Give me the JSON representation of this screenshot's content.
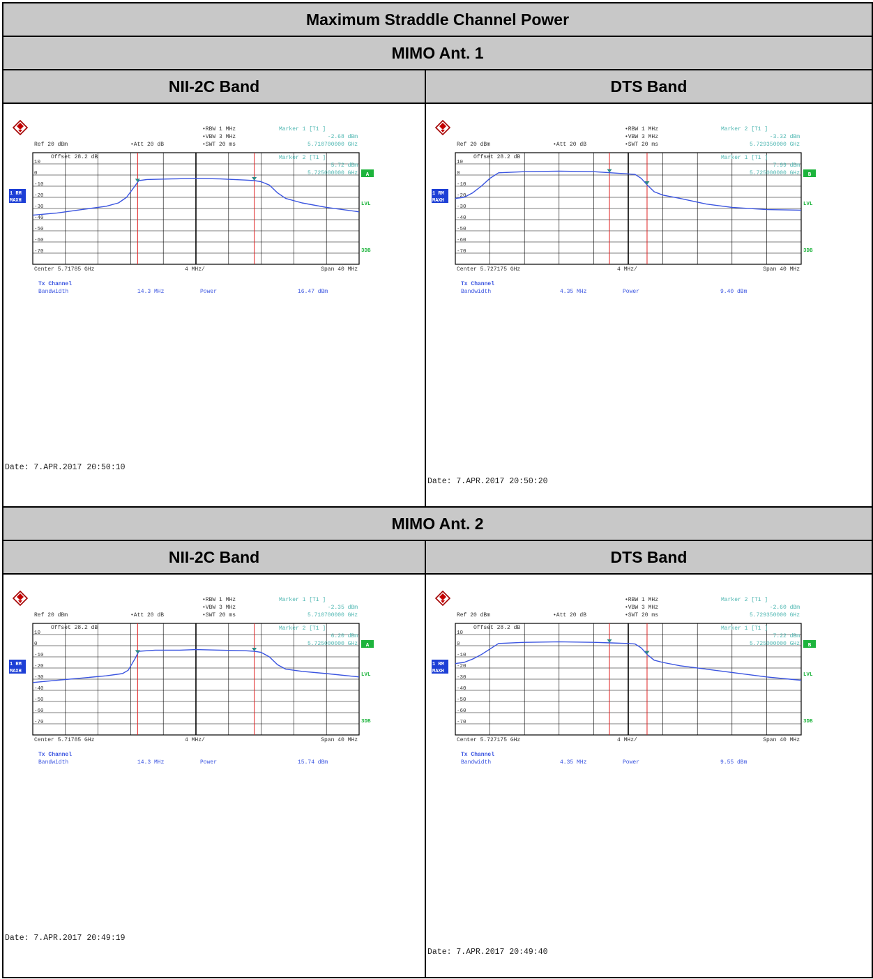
{
  "title": "Maximum Straddle Channel Power",
  "sections": [
    {
      "label": "MIMO Ant. 1",
      "band_left": "NII-2C Band",
      "band_right": "DTS Band"
    },
    {
      "label": "MIMO Ant. 2",
      "band_left": "NII-2C Band",
      "band_right": "DTS Band"
    }
  ],
  "chart_data": [
    {
      "type": "line",
      "label": "MIMO Ant. 1 - NII-2C Band",
      "settings": {
        "ref": "Ref  20 dBm",
        "att": "Att  20 dB",
        "offset": "Offset  28.2 dB",
        "rbw": "RBW 1 MHz",
        "vbw": "VBW 3 MHz",
        "swt": "SWT 20 ms",
        "trace_label": "1 RM",
        "trace_mode": "MAXH"
      },
      "markers": [
        {
          "label": "Marker 1 [T1 ]",
          "level": "-2.68 dBm",
          "freq": "5.710700000 GHz"
        },
        {
          "label": "Marker 2 [T1 ]",
          "level": "5.72 dBm",
          "freq": "5.725000000 GHz"
        }
      ],
      "side_labels": [
        "A",
        "LVL",
        "3DB"
      ],
      "center_label": "Center 5.71785 GHz",
      "div_label": "4 MHz/",
      "span_label": "Span 40 MHz",
      "center_ghz": 5.71785,
      "span_mhz": 40,
      "ylim": [
        -80,
        20
      ],
      "yticks": [
        "10",
        "0",
        "-10",
        "-20",
        "-30",
        "-40",
        "-50",
        "-60",
        "-70"
      ],
      "channel_lines_mhz": [
        -7.15,
        7.15
      ],
      "x_mhz": [
        -20,
        -17,
        -14,
        -11,
        -9.5,
        -8.5,
        -7.5,
        -7,
        -6,
        -3,
        0,
        3,
        6,
        7.15,
        8,
        9,
        10,
        11,
        13,
        16,
        20
      ],
      "y_dbm": [
        -36,
        -34,
        -31,
        -28,
        -25,
        -20,
        -10,
        -5,
        -4,
        -3.5,
        -3,
        -3.5,
        -4.5,
        -5,
        -6,
        -9,
        -16,
        -21,
        -25,
        -29,
        -33
      ],
      "tx": {
        "title": "Tx Channel",
        "bw_label": "Bandwidth",
        "bw_value": "14.3 MHz",
        "power_label": "Power",
        "power_value": "16.47 dBm"
      },
      "date": "Date: 7.APR.2017  20:50:10"
    },
    {
      "type": "line",
      "label": "MIMO Ant. 1 - DTS Band",
      "settings": {
        "ref": "Ref  20 dBm",
        "att": "Att  20 dB",
        "offset": "Offset  28.2 dB",
        "rbw": "RBW 1 MHz",
        "vbw": "VBW 3 MHz",
        "swt": "SWT 20 ms",
        "trace_label": "1 RM",
        "trace_mode": "MAXH"
      },
      "markers": [
        {
          "label": "Marker 2 [T1 ]",
          "level": "-3.32 dBm",
          "freq": "5.729350000 GHz"
        },
        {
          "label": "Marker 1 [T1 ]",
          "level": "7.99 dBm",
          "freq": "5.725000000 GHz"
        }
      ],
      "side_labels": [
        "B",
        "LVL",
        "3DB"
      ],
      "center_label": "Center 5.727175 GHz",
      "div_label": "4 MHz/",
      "span_label": "Span 40 MHz",
      "center_ghz": 5.727175,
      "span_mhz": 40,
      "ylim": [
        -80,
        20
      ],
      "yticks": [
        "10",
        "0",
        "-10",
        "-20",
        "-30",
        "-40",
        "-50",
        "-60",
        "-70"
      ],
      "channel_lines_mhz": [
        -2.175,
        2.175
      ],
      "x_mhz": [
        -20,
        -19,
        -18,
        -17,
        -16,
        -15,
        -12,
        -8,
        -4,
        -2,
        0,
        0.8,
        1.5,
        2.2,
        3,
        4,
        6,
        9,
        12,
        16,
        20
      ],
      "y_dbm": [
        -21,
        -20,
        -16,
        -10,
        -3,
        2,
        3,
        3.5,
        3,
        2,
        1,
        0.5,
        -3,
        -9,
        -15,
        -18,
        -21,
        -26,
        -29,
        -31,
        -31.5
      ],
      "tx": {
        "title": "Tx Channel",
        "bw_label": "Bandwidth",
        "bw_value": "4.35 MHz",
        "power_label": "Power",
        "power_value": "9.40 dBm"
      },
      "date": "Date: 7.APR.2017  20:50:20"
    },
    {
      "type": "line",
      "label": "MIMO Ant. 2 - NII-2C Band",
      "settings": {
        "ref": "Ref  20 dBm",
        "att": "Att  20 dB",
        "offset": "Offset  28.2 dB",
        "rbw": "RBW 1 MHz",
        "vbw": "VBW 3 MHz",
        "swt": "SWT 20 ms",
        "trace_label": "1 RM",
        "trace_mode": "MAXH"
      },
      "markers": [
        {
          "label": "Marker 1 [T1 ]",
          "level": "-2.35 dBm",
          "freq": "5.710700000 GHz"
        },
        {
          "label": "Marker 2 [T1 ]",
          "level": "6.20 dBm",
          "freq": "5.725000000 GHz"
        }
      ],
      "side_labels": [
        "A",
        "LVL",
        "3DB"
      ],
      "center_label": "Center 5.71785 GHz",
      "div_label": "4 MHz/",
      "span_label": "Span 40 MHz",
      "center_ghz": 5.71785,
      "span_mhz": 40,
      "ylim": [
        -80,
        20
      ],
      "yticks": [
        "10",
        "0",
        "-10",
        "-20",
        "-30",
        "-40",
        "-50",
        "-60",
        "-70"
      ],
      "channel_lines_mhz": [
        -7.15,
        7.15
      ],
      "x_mhz": [
        -20,
        -17,
        -14,
        -11,
        -9,
        -8.3,
        -7.5,
        -7,
        -5,
        -2,
        0,
        3,
        6,
        7.15,
        8,
        9,
        10,
        11,
        13,
        16,
        20
      ],
      "y_dbm": [
        -33,
        -31,
        -29,
        -27,
        -25,
        -22,
        -12,
        -5,
        -4,
        -4,
        -3.5,
        -4,
        -4.5,
        -5,
        -6,
        -10,
        -17,
        -21,
        -23,
        -25,
        -28
      ],
      "tx": {
        "title": "Tx Channel",
        "bw_label": "Bandwidth",
        "bw_value": "14.3 MHz",
        "power_label": "Power",
        "power_value": "15.74 dBm"
      },
      "date": "Date: 7.APR.2017  20:49:19"
    },
    {
      "type": "line",
      "label": "MIMO Ant. 2 - DTS Band",
      "settings": {
        "ref": "Ref  20 dBm",
        "att": "Att  20 dB",
        "offset": "Offset  28.2 dB",
        "rbw": "RBW 1 MHz",
        "vbw": "VBW 3 MHz",
        "swt": "SWT 20 ms",
        "trace_label": "1 RM",
        "trace_mode": "MAXH"
      },
      "markers": [
        {
          "label": "Marker 2 [T1 ]",
          "level": "-2.60 dBm",
          "freq": "5.729350000 GHz"
        },
        {
          "label": "Marker 1 [T1 ]",
          "level": "7.22 dBm",
          "freq": "5.725000000 GHz"
        }
      ],
      "side_labels": [
        "B",
        "LVL",
        "3DB"
      ],
      "center_label": "Center 5.727175 GHz",
      "div_label": "4 MHz/",
      "span_label": "Span 40 MHz",
      "center_ghz": 5.727175,
      "span_mhz": 40,
      "ylim": [
        -80,
        20
      ],
      "yticks": [
        "10",
        "0",
        "-10",
        "-20",
        "-30",
        "-40",
        "-50",
        "-60",
        "-70"
      ],
      "channel_lines_mhz": [
        -2.175,
        2.175
      ],
      "x_mhz": [
        -20,
        -19,
        -18,
        -17,
        -16,
        -15,
        -12,
        -8,
        -4,
        -2,
        0,
        0.8,
        1.5,
        2.2,
        3,
        4,
        6,
        9,
        12,
        16,
        20
      ],
      "y_dbm": [
        -16,
        -15,
        -12,
        -8,
        -3,
        2,
        3,
        3.5,
        3,
        2.5,
        2,
        1.5,
        -2,
        -8,
        -13,
        -15,
        -18,
        -21,
        -24,
        -28,
        -31
      ],
      "tx": {
        "title": "Tx Channel",
        "bw_label": "Bandwidth",
        "bw_value": "4.35 MHz",
        "power_label": "Power",
        "power_value": "9.55 dBm"
      },
      "date": "Date: 7.APR.2017  20:49:40"
    }
  ]
}
